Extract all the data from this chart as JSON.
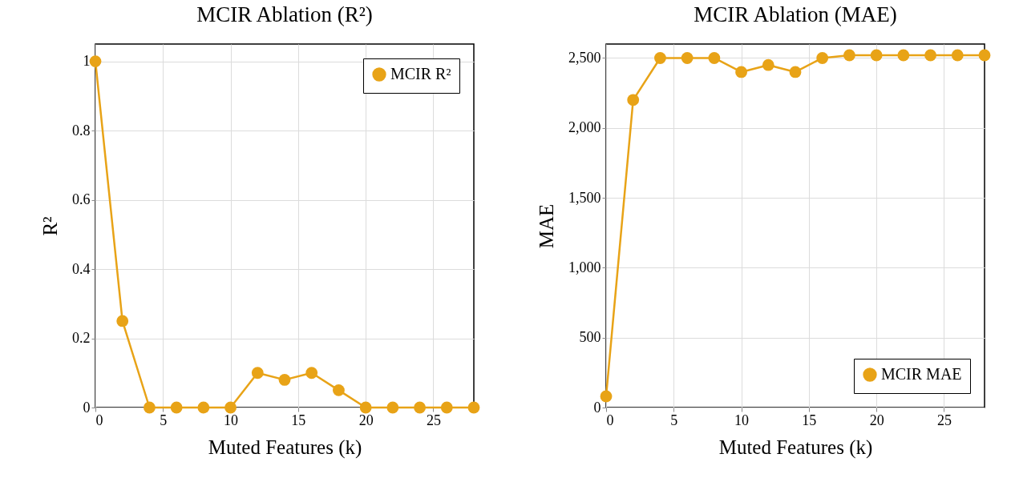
{
  "chart_data": [
    {
      "type": "line",
      "title": "MCIR Ablation (R²)",
      "xlabel": "Muted Features (k)",
      "ylabel": "R²",
      "x": [
        0,
        2,
        4,
        6,
        8,
        10,
        12,
        14,
        16,
        18,
        20,
        22,
        24,
        26,
        28
      ],
      "series": [
        {
          "name": "MCIR R²",
          "color": "#e8a317",
          "values": [
            1,
            0.25,
            0,
            0,
            0,
            0,
            0.1,
            0.08,
            0.1,
            0.05,
            0,
            0,
            0,
            0,
            0
          ]
        }
      ],
      "xlim": [
        0,
        28
      ],
      "xticks": [
        0,
        5,
        10,
        15,
        20,
        25
      ],
      "ylim": [
        0,
        1.05
      ],
      "yticks": [
        0,
        0.2,
        0.4,
        0.6,
        0.8,
        1
      ],
      "grid": true,
      "legend": "top right",
      "marker": "circle",
      "line_style": "solid"
    },
    {
      "type": "line",
      "title": "MCIR Ablation (MAE)",
      "xlabel": "Muted Features (k)",
      "ylabel": "MAE",
      "x": [
        0,
        2,
        4,
        6,
        8,
        10,
        12,
        14,
        16,
        18,
        20,
        22,
        24,
        26,
        28
      ],
      "series": [
        {
          "name": "MCIR MAE",
          "color": "#e8a317",
          "values": [
            80,
            2200,
            2500,
            2500,
            2500,
            2400,
            2450,
            2400,
            2500,
            2520,
            2520,
            2520,
            2520,
            2520,
            2520
          ]
        }
      ],
      "xlim": [
        0,
        28
      ],
      "xticks": [
        0,
        5,
        10,
        15,
        20,
        25
      ],
      "ylim": [
        0,
        2600
      ],
      "yticks": [
        0,
        500,
        {
          "value": 1000,
          "label": "1,000"
        },
        {
          "value": 1500,
          "label": "1,500"
        },
        {
          "value": 2000,
          "label": "2,000"
        },
        {
          "value": 2500,
          "label": "2,500"
        }
      ],
      "grid": true,
      "legend": "bottom right",
      "marker": "circle",
      "line_style": "solid"
    }
  ]
}
